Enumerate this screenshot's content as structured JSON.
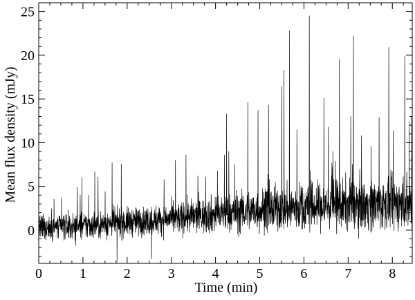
{
  "chart_data": {
    "type": "line",
    "title": "",
    "xlabel": "Time (min)",
    "ylabel": "Mean flux density (mJy)",
    "xlim": [
      0,
      8.45
    ],
    "ylim": [
      -3.8,
      26
    ],
    "x_ticks": [
      0,
      1,
      2,
      3,
      4,
      5,
      6,
      7,
      8
    ],
    "x_tick_labels": [
      "0",
      "1",
      "2",
      "3",
      "4",
      "5",
      "6",
      "7",
      "8"
    ],
    "y_ticks": [
      0,
      5,
      10,
      15,
      20,
      25
    ],
    "y_tick_labels": [
      "0",
      "5",
      "10",
      "15",
      "20",
      "25"
    ],
    "grid": false,
    "legend": "none",
    "line_color": "#000000",
    "baseline": [
      [
        0,
        0.2
      ],
      [
        1,
        0.5
      ],
      [
        2,
        0.9
      ],
      [
        3,
        1.3
      ],
      [
        4,
        1.8
      ],
      [
        5,
        2.3
      ],
      [
        6,
        2.6
      ],
      [
        7,
        2.9
      ],
      [
        8,
        3.0
      ],
      [
        8.45,
        3.0
      ]
    ],
    "noise_amplitude": [
      [
        0,
        1.4
      ],
      [
        3,
        1.6
      ],
      [
        4,
        2.0
      ],
      [
        6,
        2.6
      ],
      [
        8.45,
        2.8
      ]
    ],
    "spikes": [
      {
        "x": 1.66,
        "y": 7.7
      },
      {
        "x": 1.77,
        "y": -3.6
      },
      {
        "x": 1.13,
        "y": 4.0
      },
      {
        "x": 2.55,
        "y": -3.3
      },
      {
        "x": 3.33,
        "y": 8.6
      },
      {
        "x": 3.6,
        "y": 6.2
      },
      {
        "x": 4.2,
        "y": 8.6
      },
      {
        "x": 4.25,
        "y": 13.3
      },
      {
        "x": 4.43,
        "y": 7.5
      },
      {
        "x": 4.73,
        "y": 14.6
      },
      {
        "x": 4.96,
        "y": 13.7
      },
      {
        "x": 5.2,
        "y": 14.3
      },
      {
        "x": 5.5,
        "y": 16.4
      },
      {
        "x": 5.55,
        "y": 18.3
      },
      {
        "x": 5.67,
        "y": 22.8
      },
      {
        "x": 5.84,
        "y": 11.5
      },
      {
        "x": 6.12,
        "y": 24.5
      },
      {
        "x": 6.45,
        "y": 15.1
      },
      {
        "x": 6.55,
        "y": 11.8
      },
      {
        "x": 6.8,
        "y": 19.5
      },
      {
        "x": 7.06,
        "y": 13.0
      },
      {
        "x": 7.12,
        "y": 22.2
      },
      {
        "x": 7.3,
        "y": 10.8
      },
      {
        "x": 7.52,
        "y": 9.6
      },
      {
        "x": 7.7,
        "y": 12.9
      },
      {
        "x": 7.92,
        "y": 20.9
      },
      {
        "x": 8.02,
        "y": 11.4
      },
      {
        "x": 8.28,
        "y": 19.9
      },
      {
        "x": 8.38,
        "y": 12.4
      },
      {
        "x": 8.44,
        "y": 13.0
      }
    ],
    "sample_count": 2200
  }
}
